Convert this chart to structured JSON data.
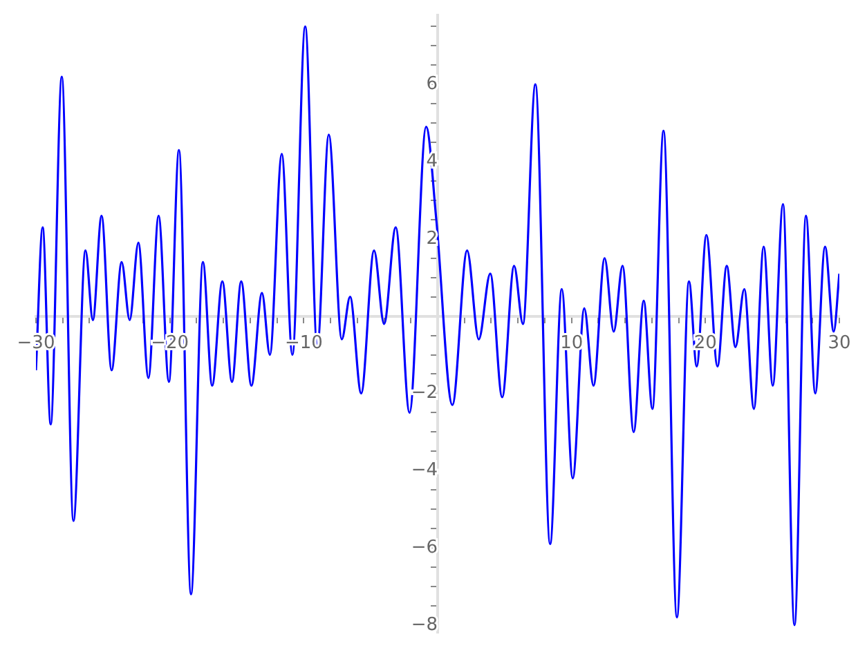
{
  "chart_data": {
    "type": "line",
    "xlim": [
      -30,
      30
    ],
    "ylim": [
      -8.2,
      7.8
    ],
    "xticks": [
      {
        "value": -30,
        "label": "−30"
      },
      {
        "value": -28,
        "label": null
      },
      {
        "value": -26,
        "label": null
      },
      {
        "value": -24,
        "label": null
      },
      {
        "value": -22,
        "label": null
      },
      {
        "value": -20,
        "label": "−20"
      },
      {
        "value": -18,
        "label": null
      },
      {
        "value": -16,
        "label": null
      },
      {
        "value": -14,
        "label": null
      },
      {
        "value": -12,
        "label": null
      },
      {
        "value": -10,
        "label": "−10"
      },
      {
        "value": -8,
        "label": null
      },
      {
        "value": -6,
        "label": null
      },
      {
        "value": -4,
        "label": null
      },
      {
        "value": -2,
        "label": null
      },
      {
        "value": 2,
        "label": null
      },
      {
        "value": 4,
        "label": null
      },
      {
        "value": 6,
        "label": null
      },
      {
        "value": 8,
        "label": null
      },
      {
        "value": 10,
        "label": "10"
      },
      {
        "value": 12,
        "label": null
      },
      {
        "value": 14,
        "label": null
      },
      {
        "value": 16,
        "label": null
      },
      {
        "value": 18,
        "label": null
      },
      {
        "value": 20,
        "label": "20"
      },
      {
        "value": 22,
        "label": null
      },
      {
        "value": 24,
        "label": null
      },
      {
        "value": 26,
        "label": null
      },
      {
        "value": 28,
        "label": null
      },
      {
        "value": 30,
        "label": "30"
      }
    ],
    "yticks": [
      {
        "value": -8,
        "label": "−8"
      },
      {
        "value": -7.5,
        "label": null
      },
      {
        "value": -7,
        "label": null
      },
      {
        "value": -6.5,
        "label": null
      },
      {
        "value": -6,
        "label": "−6"
      },
      {
        "value": -5.5,
        "label": null
      },
      {
        "value": -5,
        "label": null
      },
      {
        "value": -4.5,
        "label": null
      },
      {
        "value": -4,
        "label": "−4"
      },
      {
        "value": -3.5,
        "label": null
      },
      {
        "value": -3,
        "label": null
      },
      {
        "value": -2.5,
        "label": null
      },
      {
        "value": -2,
        "label": "−2"
      },
      {
        "value": -1.5,
        "label": null
      },
      {
        "value": -1,
        "label": null
      },
      {
        "value": -0.5,
        "label": null
      },
      {
        "value": 0.5,
        "label": null
      },
      {
        "value": 1,
        "label": null
      },
      {
        "value": 1.5,
        "label": null
      },
      {
        "value": 2,
        "label": "2"
      },
      {
        "value": 2.5,
        "label": null
      },
      {
        "value": 3,
        "label": null
      },
      {
        "value": 3.5,
        "label": null
      },
      {
        "value": 4,
        "label": "4"
      },
      {
        "value": 4.5,
        "label": null
      },
      {
        "value": 5,
        "label": null
      },
      {
        "value": 5.5,
        "label": null
      },
      {
        "value": 6,
        "label": "6"
      },
      {
        "value": 6.5,
        "label": null
      },
      {
        "value": 7,
        "label": null
      },
      {
        "value": 7.5,
        "label": null
      }
    ],
    "grid": false,
    "legend": false,
    "marker": "none",
    "line_style": "solid",
    "series": [
      {
        "color": "#0000ff",
        "x": [
          -30,
          -29.5,
          -28.9,
          -28.07,
          -27.2,
          -26.3,
          -25.75,
          -25.1,
          -24.35,
          -23.6,
          -23.0,
          -22.35,
          -21.6,
          -20.84,
          -20.07,
          -19.32,
          -18.42,
          -17.53,
          -16.84,
          -16.08,
          -15.36,
          -14.67,
          -13.91,
          -13.12,
          -12.53,
          -11.64,
          -10.85,
          -9.89,
          -8.99,
          -8.13,
          -7.16,
          -6.54,
          -5.71,
          -4.75,
          -4.0,
          -3.13,
          -2.1,
          -0.86,
          -0.1,
          1.1,
          2.2,
          3.07,
          3.93,
          4.82,
          5.71,
          6.37,
          7.3,
          8.4,
          9.27,
          10.09,
          10.95,
          11.64,
          12.47,
          13.15,
          13.81,
          14.64,
          15.39,
          16.04,
          16.87,
          17.87,
          18.77,
          19.35,
          20.07,
          20.9,
          21.59,
          22.24,
          22.9,
          23.62,
          24.35,
          25.03,
          25.79,
          26.65,
          27.51,
          28.2,
          28.93,
          29.58,
          30
        ],
        "values": [
          -1.4,
          2.3,
          -2.8,
          6.2,
          -5.3,
          1.7,
          -0.1,
          2.6,
          -1.4,
          1.4,
          -0.1,
          1.9,
          -1.6,
          2.6,
          -1.7,
          4.3,
          -7.2,
          1.4,
          -1.8,
          0.9,
          -1.7,
          0.9,
          -1.8,
          0.6,
          -1.0,
          4.2,
          -1.0,
          7.5,
          -0.8,
          4.7,
          -0.6,
          0.5,
          -2.0,
          1.7,
          -0.2,
          2.3,
          -2.5,
          4.9,
          2.5,
          -2.3,
          1.7,
          -0.6,
          1.1,
          -2.1,
          1.3,
          -0.2,
          6.0,
          -5.9,
          0.7,
          -4.2,
          0.2,
          -1.8,
          1.5,
          -0.4,
          1.3,
          -3.0,
          0.4,
          -2.4,
          4.8,
          -7.8,
          0.9,
          -1.3,
          2.1,
          -1.3,
          1.3,
          -0.8,
          0.7,
          -2.4,
          1.8,
          -1.8,
          2.9,
          -8.0,
          2.6,
          -2.0,
          1.8,
          -0.4,
          1.1
        ]
      }
    ]
  }
}
